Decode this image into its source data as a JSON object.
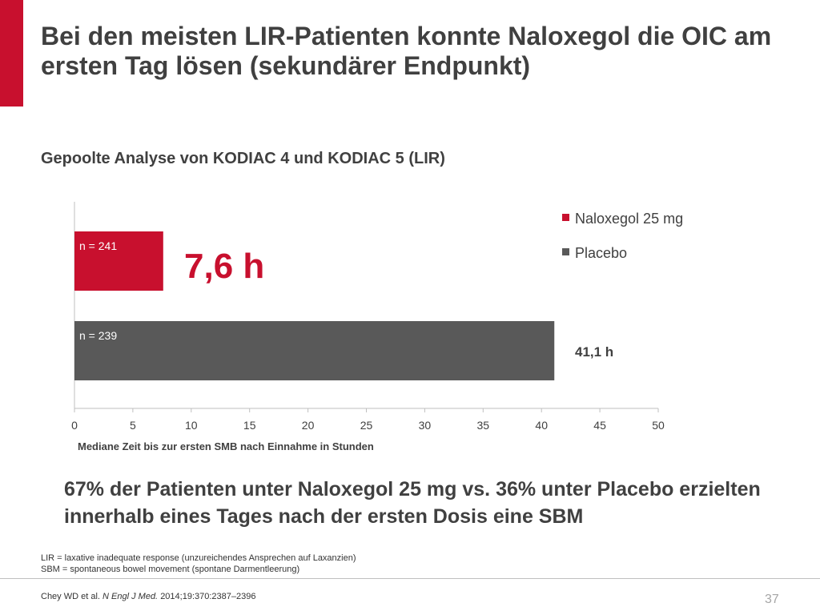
{
  "slide": {
    "title": "Bei den meisten LIR-Patienten konnte Naloxegol die OIC am ersten Tag lösen (sekundärer Endpunkt)",
    "subtitle": "Gepoolte Analyse von KODIAC 4 und KODIAC 5 (LIR)",
    "conclusion": "67% der Patienten unter Naloxegol 25 mg vs. 36% unter Placebo erzielten innerhalb eines Tages nach der ersten Dosis eine SBM",
    "footnote_lir": "LIR = laxative inadequate response (unzureichendes Ansprechen auf Laxanzien)",
    "footnote_sbm": "SBM = spontaneous bowel movement (spontane Darmentleerung)",
    "citation_authors": "Chey WD et al.",
    "citation_journal": "N Engl J Med.",
    "citation_details": "2014;19:370:2387–2396",
    "page_number": "37",
    "accent_color": "#c8102e"
  },
  "chart_data": {
    "type": "bar",
    "orientation": "horizontal",
    "title": "",
    "xlabel": "Mediane Zeit bis zur ersten SMB nach Einnahme in Stunden",
    "ylabel": "",
    "xlim": [
      0,
      50
    ],
    "xticks": [
      0,
      5,
      10,
      15,
      20,
      25,
      30,
      35,
      40,
      45,
      50
    ],
    "grid": false,
    "legend_position": "top-right",
    "series": [
      {
        "name": "Naloxegol 25 mg",
        "value": 7.6,
        "n_label": "n = 241",
        "value_label": "7,6 h",
        "color": "#c8102e"
      },
      {
        "name": "Placebo",
        "value": 41.1,
        "n_label": "n = 239",
        "value_label": "41,1 h",
        "color": "#595959"
      }
    ]
  }
}
